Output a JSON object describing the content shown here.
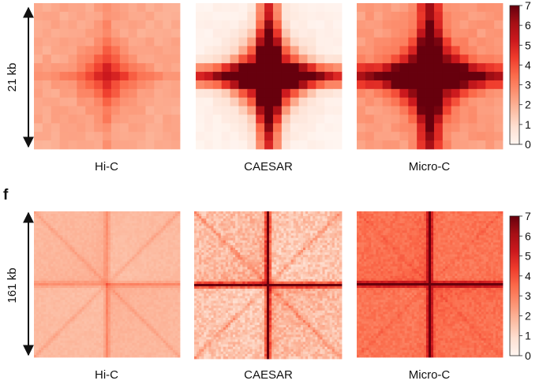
{
  "chart_data": [
    {
      "type": "heatmap",
      "panel_label": "",
      "span_label": "21 kb",
      "colormap": "Reds",
      "colorbar": {
        "ticks": [
          "0",
          "1",
          "2",
          "3",
          "4",
          "5",
          "6",
          "7"
        ],
        "range": [
          0,
          7
        ]
      },
      "panels": [
        {
          "title": "Hi-C",
          "style": "aggregate",
          "grid": 17,
          "base": 2.3,
          "cross_peak": 0.6,
          "cross_width": 0.6,
          "center": 1.4,
          "center_width": 1.6,
          "noise": 0.22,
          "diag": 0,
          "checker": 0
        },
        {
          "title": "CAESAR",
          "style": "aggregate",
          "grid": 17,
          "base": 0.3,
          "cross_peak": 7.5,
          "cross_width": 0.9,
          "center": 4.5,
          "center_width": 2.8,
          "noise": 0.15,
          "diag": 0,
          "checker": 0
        },
        {
          "title": "Micro-C",
          "style": "aggregate",
          "grid": 17,
          "base": 2.6,
          "cross_peak": 5.6,
          "cross_width": 0.9,
          "center": 3.6,
          "center_width": 2.6,
          "noise": 0.25,
          "diag": 0,
          "checker": 0
        }
      ]
    },
    {
      "type": "heatmap",
      "panel_label": "f",
      "span_label": "161 kb",
      "colormap": "Reds",
      "colorbar": {
        "ticks": [
          "0",
          "1",
          "2",
          "3",
          "4",
          "5",
          "6",
          "7"
        ],
        "range": [
          0,
          7
        ]
      },
      "panels": [
        {
          "title": "Hi-C",
          "style": "fine",
          "grid": 61,
          "base": 1.8,
          "cross_peak": 0.9,
          "cross_width": 0.8,
          "center": 0,
          "center_width": 1,
          "noise": 0.12,
          "diag": 0.6,
          "checker": 0.25
        },
        {
          "title": "CAESAR",
          "style": "fine",
          "grid": 61,
          "base": 1.6,
          "cross_peak": 5.5,
          "cross_width": 0.7,
          "center": 0,
          "center_width": 1,
          "noise": 0.55,
          "diag": 1.2,
          "checker": 0.6
        },
        {
          "title": "Micro-C",
          "style": "fine",
          "grid": 61,
          "base": 3.3,
          "cross_peak": 4.5,
          "cross_width": 0.7,
          "center": 0,
          "center_width": 1,
          "noise": 0.3,
          "diag": 0.4,
          "checker": 0.3
        }
      ]
    }
  ]
}
